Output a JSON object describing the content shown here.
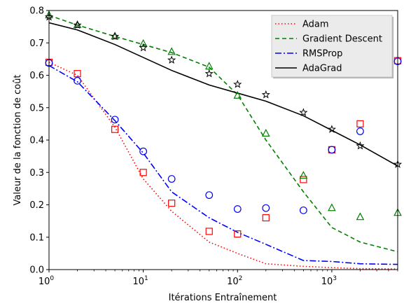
{
  "chart_data": {
    "type": "line",
    "title": "",
    "xlabel": "Itérations Entraînement",
    "ylabel": "Valeur de la fonction de coût",
    "xscale": "log",
    "xlim": [
      1,
      5000
    ],
    "ylim": [
      0,
      0.8
    ],
    "y_ticks": [
      "0.0",
      "0.1",
      "0.2",
      "0.3",
      "0.4",
      "0.5",
      "0.6",
      "0.7",
      "0.8"
    ],
    "x_ticks": [
      {
        "base": "10",
        "exp": "0"
      },
      {
        "base": "10",
        "exp": "1"
      },
      {
        "base": "10",
        "exp": "2"
      },
      {
        "base": "10",
        "exp": "3"
      }
    ],
    "grid": false,
    "legend_position": "top-right",
    "series": [
      {
        "name": "Adam",
        "color": "#ff0000",
        "line_style": "dotted",
        "marker": "square",
        "x": [
          1,
          2,
          5,
          10,
          20,
          50,
          100,
          200,
          500,
          1000,
          2000,
          5000
        ],
        "y": [
          0.64,
          0.6,
          0.44,
          0.28,
          0.18,
          0.085,
          0.05,
          0.018,
          0.01,
          0.006,
          0.003,
          0.002
        ],
        "marker_x": [
          1,
          2,
          5,
          10,
          20,
          50,
          100,
          200,
          500,
          1000,
          2000,
          5000
        ],
        "marker_y": [
          0.64,
          0.605,
          0.433,
          0.3,
          0.205,
          0.118,
          0.11,
          0.16,
          0.278,
          0.37,
          0.45,
          0.645
        ]
      },
      {
        "name": "Gradient Descent",
        "color": "#008000",
        "line_style": "dashed",
        "marker": "triangle",
        "x": [
          1,
          2,
          5,
          10,
          20,
          50,
          100,
          200,
          500,
          1000,
          2000,
          5000
        ],
        "y": [
          0.785,
          0.755,
          0.72,
          0.695,
          0.67,
          0.625,
          0.54,
          0.4,
          0.24,
          0.13,
          0.085,
          0.055
        ],
        "marker_x": [
          1,
          2,
          5,
          10,
          20,
          50,
          100,
          200,
          500,
          1000,
          2000,
          5000
        ],
        "marker_y": [
          0.785,
          0.755,
          0.72,
          0.697,
          0.672,
          0.627,
          0.537,
          0.42,
          0.29,
          0.19,
          0.162,
          0.175
        ]
      },
      {
        "name": "RMSProp",
        "color": "#0000ff",
        "line_style": "dashdot",
        "marker": "circle",
        "x": [
          1,
          2,
          5,
          10,
          20,
          50,
          100,
          200,
          500,
          1000,
          2000,
          5000
        ],
        "y": [
          0.63,
          0.58,
          0.46,
          0.36,
          0.24,
          0.16,
          0.115,
          0.078,
          0.028,
          0.025,
          0.018,
          0.016
        ],
        "marker_x": [
          1,
          2,
          5,
          10,
          20,
          50,
          100,
          200,
          500,
          1000,
          2000,
          5000
        ],
        "marker_y": [
          0.638,
          0.583,
          0.463,
          0.365,
          0.28,
          0.23,
          0.187,
          0.19,
          0.183,
          0.37,
          0.427,
          0.643
        ]
      },
      {
        "name": "AdaGrad",
        "color": "#000000",
        "line_style": "solid",
        "marker": "star",
        "x": [
          1,
          2,
          5,
          10,
          20,
          50,
          100,
          200,
          500,
          1000,
          2000,
          5000
        ],
        "y": [
          0.762,
          0.74,
          0.695,
          0.655,
          0.615,
          0.57,
          0.545,
          0.52,
          0.475,
          0.43,
          0.385,
          0.32
        ],
        "marker_x": [
          1,
          2,
          5,
          10,
          20,
          50,
          100,
          200,
          500,
          1000,
          2000,
          5000
        ],
        "marker_y": [
          0.78,
          0.755,
          0.72,
          0.685,
          0.647,
          0.605,
          0.572,
          0.54,
          0.485,
          0.433,
          0.382,
          0.325
        ]
      }
    ]
  }
}
